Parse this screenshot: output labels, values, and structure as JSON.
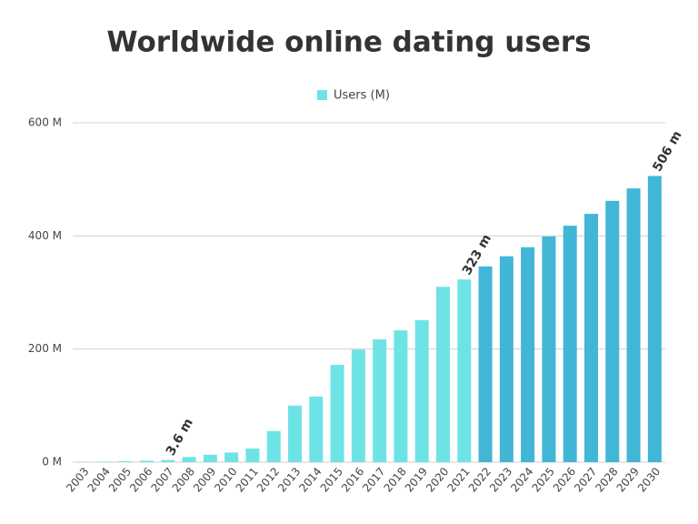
{
  "chart_data": {
    "type": "bar",
    "title": "Worldwide online dating users",
    "categories": [
      "2003",
      "2004",
      "2005",
      "2006",
      "2007",
      "2008",
      "2009",
      "2010",
      "2011",
      "2012",
      "2013",
      "2014",
      "2015",
      "2016",
      "2017",
      "2018",
      "2019",
      "2020",
      "2021",
      "2022",
      "2023",
      "2024",
      "2025",
      "2026",
      "2027",
      "2028",
      "2029",
      "2030"
    ],
    "series": [
      {
        "name": "Users (M)",
        "color": "#6ee3e6",
        "values": [
          0.5,
          1,
          1.5,
          2.5,
          3.6,
          9,
          13,
          17,
          24,
          55,
          100,
          116,
          172,
          199,
          217,
          233,
          251,
          310,
          323,
          346,
          364,
          380,
          399,
          418,
          439,
          462,
          484,
          506
        ],
        "value_labels": [
          null,
          null,
          null,
          null,
          "3.6 m",
          null,
          null,
          null,
          null,
          null,
          null,
          null,
          null,
          null,
          null,
          null,
          null,
          null,
          "323 m",
          null,
          null,
          null,
          null,
          null,
          null,
          null,
          null,
          "506 m"
        ],
        "colors": [
          "#6ee3e6",
          "#6ee3e6",
          "#6ee3e6",
          "#6ee3e6",
          "#6ee3e6",
          "#6ee3e6",
          "#6ee3e6",
          "#6ee3e6",
          "#6ee3e6",
          "#6ee3e6",
          "#6ee3e6",
          "#6ee3e6",
          "#6ee3e6",
          "#6ee3e6",
          "#6ee3e6",
          "#6ee3e6",
          "#6ee3e6",
          "#6ee3e6",
          "#6ee3e6",
          "#41b6d6",
          "#41b6d6",
          "#41b6d6",
          "#41b6d6",
          "#41b6d6",
          "#41b6d6",
          "#41b6d6",
          "#41b6d6",
          "#41b6d6"
        ]
      }
    ],
    "ylim": [
      0,
      600
    ],
    "yticks": [
      {
        "value": 0,
        "label": "0 M"
      },
      {
        "value": 200,
        "label": "200 M"
      },
      {
        "value": 400,
        "label": "400 M"
      },
      {
        "value": 600,
        "label": "600 M"
      }
    ],
    "grid": true
  }
}
